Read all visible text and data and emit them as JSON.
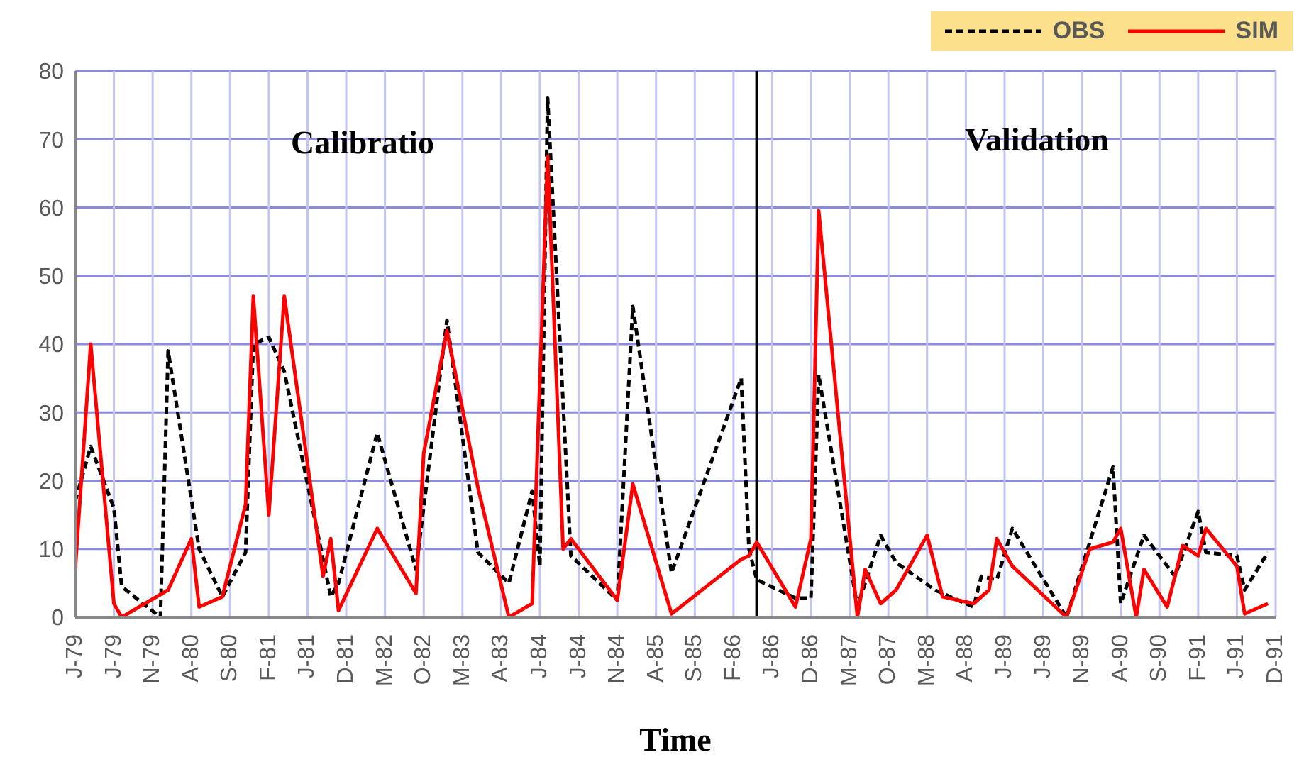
{
  "chart_data": {
    "type": "line",
    "xlabel": "Time",
    "annotations": [
      "Calibratio",
      "Validation"
    ],
    "xlim": [
      "1979-01",
      "1991-12"
    ],
    "xticks": [
      {
        "value": "1979-01",
        "label": "J-79"
      },
      {
        "value": "1979-06",
        "label": "J-79"
      },
      {
        "value": "1979-11",
        "label": "N-79"
      },
      {
        "value": "1980-04",
        "label": "A-80"
      },
      {
        "value": "1980-09",
        "label": "S-80"
      },
      {
        "value": "1981-02",
        "label": "F-81"
      },
      {
        "value": "1981-07",
        "label": "J-81"
      },
      {
        "value": "1981-12",
        "label": "D-81"
      },
      {
        "value": "1982-05",
        "label": "M-82"
      },
      {
        "value": "1982-10",
        "label": "O-82"
      },
      {
        "value": "1983-03",
        "label": "M-83"
      },
      {
        "value": "1983-08",
        "label": "A-83"
      },
      {
        "value": "1984-01",
        "label": "J-84"
      },
      {
        "value": "1984-06",
        "label": "J-84"
      },
      {
        "value": "1984-11",
        "label": "N-84"
      },
      {
        "value": "1985-04",
        "label": "A-85"
      },
      {
        "value": "1985-09",
        "label": "S-85"
      },
      {
        "value": "1986-02",
        "label": "F-86"
      },
      {
        "value": "1986-07",
        "label": "J-86"
      },
      {
        "value": "1986-12",
        "label": "D-86"
      },
      {
        "value": "1987-05",
        "label": "M-87"
      },
      {
        "value": "1987-10",
        "label": "O-87"
      },
      {
        "value": "1988-03",
        "label": "M-88"
      },
      {
        "value": "1988-08",
        "label": "A-88"
      },
      {
        "value": "1989-01",
        "label": "J-89"
      },
      {
        "value": "1989-06",
        "label": "J-89"
      },
      {
        "value": "1989-11",
        "label": "N-89"
      },
      {
        "value": "1990-04",
        "label": "A-90"
      },
      {
        "value": "1990-09",
        "label": "S-90"
      },
      {
        "value": "1991-02",
        "label": "F-91"
      },
      {
        "value": "1991-07",
        "label": "J-91"
      },
      {
        "value": "1991-12",
        "label": "D-91"
      }
    ],
    "ylim": [
      0,
      80
    ],
    "yticks": [
      0,
      10,
      20,
      30,
      40,
      50,
      60,
      70,
      80
    ],
    "grid": true,
    "legend": "top right",
    "marker": "none",
    "ref_lines": [
      {
        "axis": "x",
        "value": "1986-05",
        "color": "#000000",
        "line_style": "solid"
      }
    ],
    "series": [
      {
        "name": "OBS",
        "color": "#000000",
        "line_style": "dashed",
        "x": [
          "1979-01",
          "1979-03",
          "1979-06",
          "1979-07",
          "1979-12",
          "1980-01",
          "1980-05",
          "1980-08",
          "1980-11",
          "1980-12",
          "1981-02",
          "1981-04",
          "1981-10",
          "1981-11",
          "1982-04",
          "1982-09",
          "1983-01",
          "1983-05",
          "1983-09",
          "1983-12",
          "1984-01",
          "1984-02",
          "1984-05",
          "1984-11",
          "1985-01",
          "1985-06",
          "1986-03",
          "1986-04",
          "1986-05",
          "1986-10",
          "1986-12",
          "1987-01",
          "1987-06",
          "1987-09",
          "1987-11",
          "1988-04",
          "1988-09",
          "1988-10",
          "1988-12",
          "1989-02",
          "1989-09",
          "1990-03",
          "1990-04",
          "1990-07",
          "1990-11",
          "1991-02",
          "1991-03",
          "1991-07",
          "1991-08",
          "1991-11"
        ],
        "values": [
          17,
          25,
          16,
          4.5,
          0,
          39,
          10,
          3,
          9.5,
          40,
          41,
          36,
          3,
          5,
          27,
          7,
          43.5,
          9.5,
          5,
          18.5,
          7.5,
          76,
          9,
          2.5,
          45.5,
          6.5,
          35,
          10,
          5.5,
          2.8,
          2.8,
          35.5,
          1.5,
          12,
          8,
          4,
          1.5,
          6,
          5.5,
          13,
          0,
          22,
          2,
          12,
          6,
          15.5,
          9.5,
          9,
          4,
          9.5
        ]
      },
      {
        "name": "SIM",
        "color": "#ff0000",
        "line_style": "solid",
        "x": [
          "1979-01",
          "1979-03",
          "1979-06",
          "1979-07",
          "1980-01",
          "1980-04",
          "1980-05",
          "1980-08",
          "1980-11",
          "1980-12",
          "1981-02",
          "1981-04",
          "1981-09",
          "1981-10",
          "1981-11",
          "1982-04",
          "1982-09",
          "1982-10",
          "1983-01",
          "1983-05",
          "1983-09",
          "1983-12",
          "1984-02",
          "1984-04",
          "1984-05",
          "1984-11",
          "1985-01",
          "1985-06",
          "1986-03",
          "1986-04",
          "1986-05",
          "1986-10",
          "1986-12",
          "1987-01",
          "1987-06",
          "1987-07",
          "1987-09",
          "1987-11",
          "1988-03",
          "1988-05",
          "1988-09",
          "1988-11",
          "1988-12",
          "1989-02",
          "1989-09",
          "1989-12",
          "1990-03",
          "1990-04",
          "1990-06",
          "1990-07",
          "1990-10",
          "1990-12",
          "1991-02",
          "1991-03",
          "1991-07",
          "1991-08",
          "1991-10",
          "1991-11"
        ],
        "values": [
          7,
          40,
          2,
          0,
          4,
          11.5,
          1.5,
          3,
          16.5,
          47,
          15,
          47,
          6,
          11.5,
          1,
          13,
          3.5,
          24,
          42,
          19,
          0,
          2,
          67.5,
          10,
          11.5,
          2.5,
          19.5,
          0.5,
          8.5,
          9,
          11,
          1.5,
          11.5,
          59.5,
          0,
          7,
          2,
          4,
          12,
          3,
          2,
          4,
          11.5,
          7.5,
          0,
          10,
          11,
          13,
          0,
          7,
          1.5,
          10.5,
          9,
          13,
          7.5,
          0.5,
          1.5,
          2
        ]
      }
    ]
  }
}
